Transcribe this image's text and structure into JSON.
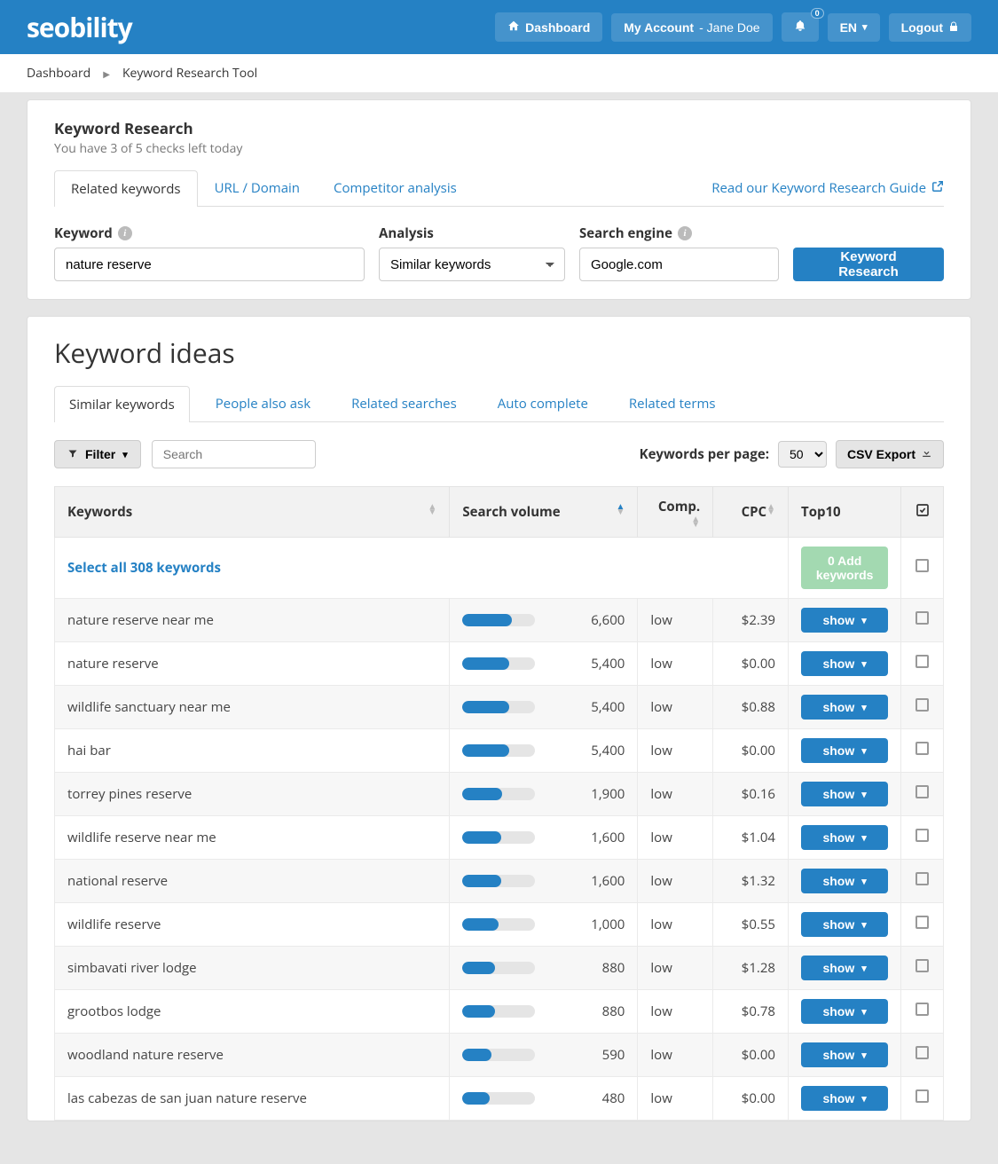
{
  "colors": {
    "primary": "#2581c4",
    "bar_bg": "#e5e5e5",
    "add_btn": "#a3d9b1"
  },
  "header": {
    "logo": "seobility",
    "dashboard": "Dashboard",
    "my_account": "My Account",
    "user_name": "Jane Doe",
    "notification_count": "0",
    "lang": "EN",
    "logout": "Logout"
  },
  "breadcrumb": {
    "root": "Dashboard",
    "current": "Keyword Research Tool"
  },
  "research_card": {
    "title": "Keyword Research",
    "subtitle": "You have 3 of 5 checks left today",
    "tabs": [
      "Related keywords",
      "URL / Domain",
      "Competitor analysis"
    ],
    "guide_link": "Read our Keyword Research Guide",
    "form": {
      "keyword_label": "Keyword",
      "keyword_value": "nature reserve",
      "analysis_label": "Analysis",
      "analysis_value": "Similar keywords",
      "engine_label": "Search engine",
      "engine_value": "Google.com",
      "submit": "Keyword Research"
    }
  },
  "ideas": {
    "title": "Keyword ideas",
    "tabs": [
      "Similar keywords",
      "People also ask",
      "Related searches",
      "Auto complete",
      "Related terms"
    ],
    "filter_btn": "Filter",
    "search_placeholder": "Search",
    "kpp_label": "Keywords per page:",
    "kpp_value": "50",
    "csv_btn": "CSV Export",
    "columns": [
      "Keywords",
      "Search volume",
      "Comp.",
      "CPC",
      "Top10",
      ""
    ],
    "select_all": "Select all 308 keywords",
    "add_btn": "0 Add keywords",
    "show_label": "show",
    "max_volume": 6600,
    "rows": [
      {
        "kw": "nature reserve near me",
        "vol": "6,600",
        "vol_pct": 68,
        "comp": "low",
        "cpc": "$2.39"
      },
      {
        "kw": "nature reserve",
        "vol": "5,400",
        "vol_pct": 64,
        "comp": "low",
        "cpc": "$0.00"
      },
      {
        "kw": "wildlife sanctuary near me",
        "vol": "5,400",
        "vol_pct": 64,
        "comp": "low",
        "cpc": "$0.88"
      },
      {
        "kw": "hai bar",
        "vol": "5,400",
        "vol_pct": 64,
        "comp": "low",
        "cpc": "$0.00"
      },
      {
        "kw": "torrey pines reserve",
        "vol": "1,900",
        "vol_pct": 55,
        "comp": "low",
        "cpc": "$0.16"
      },
      {
        "kw": "wildlife reserve near me",
        "vol": "1,600",
        "vol_pct": 53,
        "comp": "low",
        "cpc": "$1.04"
      },
      {
        "kw": "national reserve",
        "vol": "1,600",
        "vol_pct": 53,
        "comp": "low",
        "cpc": "$1.32"
      },
      {
        "kw": "wildlife reserve",
        "vol": "1,000",
        "vol_pct": 49,
        "comp": "low",
        "cpc": "$0.55"
      },
      {
        "kw": "simbavati river lodge",
        "vol": "880",
        "vol_pct": 45,
        "comp": "low",
        "cpc": "$1.28"
      },
      {
        "kw": "grootbos lodge",
        "vol": "880",
        "vol_pct": 45,
        "comp": "low",
        "cpc": "$0.78"
      },
      {
        "kw": "woodland nature reserve",
        "vol": "590",
        "vol_pct": 40,
        "comp": "low",
        "cpc": "$0.00"
      },
      {
        "kw": "las cabezas de san juan nature reserve",
        "vol": "480",
        "vol_pct": 38,
        "comp": "low",
        "cpc": "$0.00"
      }
    ]
  }
}
